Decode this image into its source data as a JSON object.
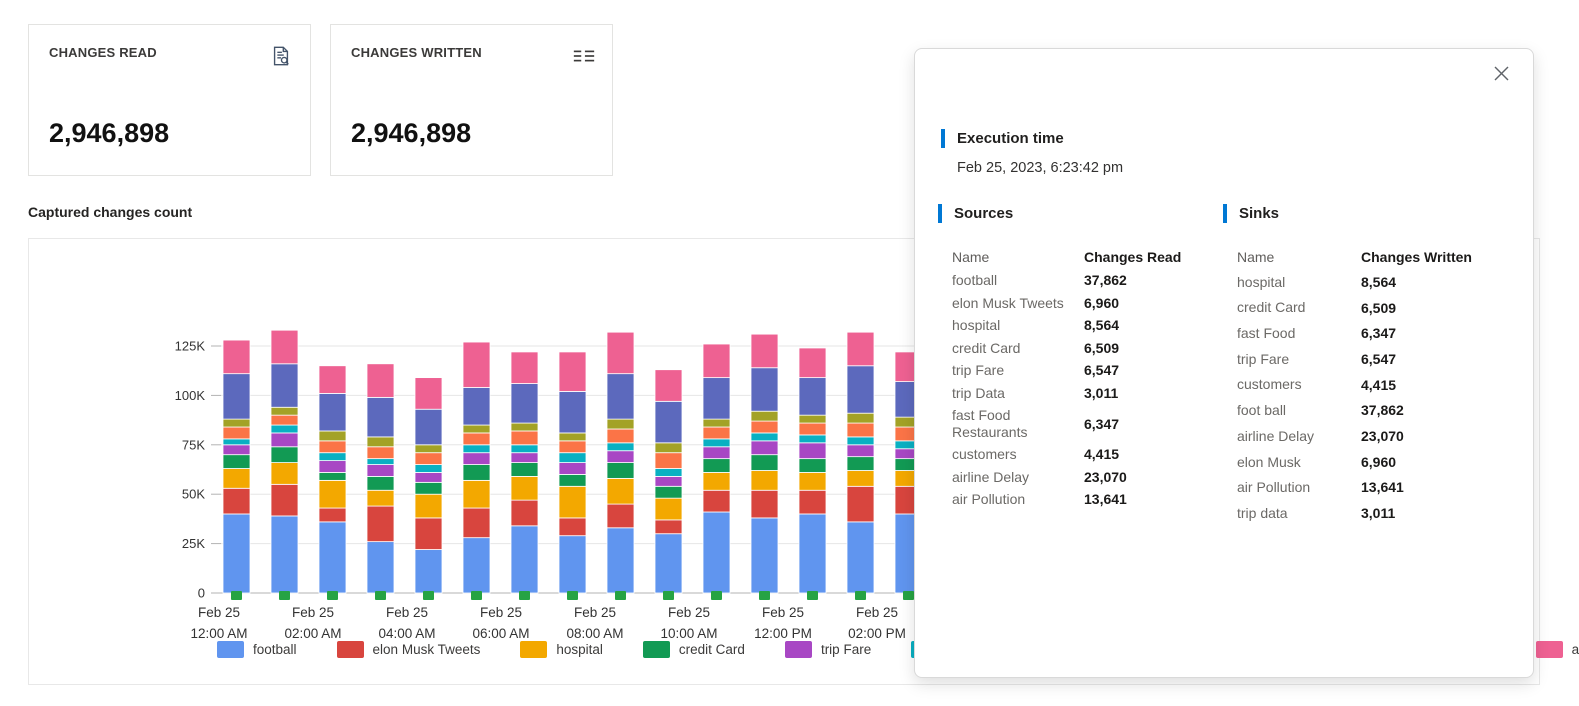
{
  "cards": {
    "read": {
      "title": "CHANGES READ",
      "value": "2,946,898",
      "icon": "document-search-icon"
    },
    "written": {
      "title": "CHANGES WRITTEN",
      "value": "2,946,898",
      "icon": "details-list-icon"
    }
  },
  "chart_data": {
    "type": "bar",
    "stacked": true,
    "title": "Captured changes count",
    "xlabel": "",
    "ylabel": "",
    "ylim": [
      0,
      137000
    ],
    "grid": true,
    "legend_position": "bottom",
    "y_ticks": [
      "0",
      "25K",
      "50K",
      "75K",
      "100K",
      "125K"
    ],
    "y_tick_values": [
      0,
      25000,
      50000,
      75000,
      100000,
      125000
    ],
    "x_labels": [
      {
        "line1": "Feb 25",
        "line2": "12:00 AM"
      },
      {
        "line1": "Feb 25",
        "line2": "02:00 AM"
      },
      {
        "line1": "Feb 25",
        "line2": "04:00 AM"
      },
      {
        "line1": "Feb 25",
        "line2": "06:00 AM"
      },
      {
        "line1": "Feb 25",
        "line2": "08:00 AM"
      },
      {
        "line1": "Feb 25",
        "line2": "10:00 AM"
      },
      {
        "line1": "Feb 25",
        "line2": "12:00 PM"
      },
      {
        "line1": "Feb 25",
        "line2": "02:00 PM"
      }
    ],
    "marker_color": "#26a343",
    "series": [
      {
        "name": "football",
        "color": "#6095ef",
        "values": [
          40000,
          39000,
          36000,
          26000,
          22000,
          28000,
          34000,
          29000,
          33000,
          30000,
          41000,
          38000,
          40000,
          36000,
          40000,
          40000
        ]
      },
      {
        "name": "elon Musk Tweets",
        "color": "#d8453e",
        "values": [
          13000,
          16000,
          7000,
          18000,
          16000,
          15000,
          13000,
          9000,
          12000,
          7000,
          11000,
          14000,
          12000,
          18000,
          14000,
          14000
        ]
      },
      {
        "name": "hospital",
        "color": "#f3a800",
        "values": [
          10000,
          11000,
          14000,
          8000,
          12000,
          14000,
          12000,
          16000,
          13000,
          11000,
          9000,
          10000,
          9000,
          8000,
          8000,
          9000
        ]
      },
      {
        "name": "credit Card",
        "color": "#129a54",
        "values": [
          7000,
          8000,
          4000,
          7000,
          6000,
          8000,
          7000,
          6000,
          8000,
          6000,
          7000,
          8000,
          7000,
          7000,
          6000,
          7000
        ]
      },
      {
        "name": "trip Fare",
        "color": "#a847c4",
        "values": [
          5000,
          7000,
          6000,
          6000,
          5000,
          6000,
          5000,
          6000,
          6000,
          5000,
          6000,
          7000,
          8000,
          6000,
          5000,
          5000
        ]
      },
      {
        "name": "trip Data",
        "color": "#09b0c2",
        "values": [
          3000,
          4000,
          4000,
          3000,
          4000,
          4000,
          4000,
          5000,
          4000,
          4000,
          4000,
          4000,
          4000,
          4000,
          4000,
          4000
        ]
      },
      {
        "name": "fast Food Restaurants",
        "color": "#fb7447",
        "values": [
          6000,
          5000,
          6000,
          6000,
          6000,
          6000,
          7000,
          6000,
          7000,
          8000,
          6000,
          6000,
          6000,
          7000,
          7000,
          6000
        ]
      },
      {
        "name": "customers",
        "color": "#a3a226",
        "values": [
          4000,
          4000,
          5000,
          5000,
          4000,
          4000,
          4000,
          4000,
          5000,
          5000,
          4000,
          5000,
          4000,
          5000,
          5000,
          4000
        ]
      },
      {
        "name": "airline Delay",
        "color": "#5c69bd",
        "values": [
          23000,
          22000,
          19000,
          20000,
          18000,
          19000,
          20000,
          21000,
          23000,
          21000,
          21000,
          22000,
          19000,
          24000,
          18000,
          19000
        ]
      },
      {
        "name": "air Pollution",
        "color": "#ee6192",
        "values": [
          17000,
          17000,
          14000,
          17000,
          16000,
          23000,
          16000,
          20000,
          21000,
          16000,
          17000,
          17000,
          15000,
          17000,
          15000,
          15000
        ]
      }
    ]
  },
  "popup": {
    "execution_time": {
      "label": "Execution time",
      "value": "Feb 25, 2023, 6:23:42 pm"
    },
    "sources": {
      "label": "Sources",
      "columns": [
        "Name",
        "Changes Read"
      ],
      "rows": [
        [
          "football",
          "37,862"
        ],
        [
          "elon Musk Tweets",
          "6,960"
        ],
        [
          "hospital",
          "8,564"
        ],
        [
          "credit Card",
          "6,509"
        ],
        [
          "trip Fare",
          "6,547"
        ],
        [
          "trip Data",
          "3,011"
        ],
        [
          "fast Food Restaurants",
          "6,347"
        ],
        [
          "customers",
          "4,415"
        ],
        [
          "airline Delay",
          "23,070"
        ],
        [
          "air Pollution",
          "13,641"
        ]
      ]
    },
    "sinks": {
      "label": "Sinks",
      "columns": [
        "Name",
        "Changes Written"
      ],
      "rows": [
        [
          "hospital",
          "8,564"
        ],
        [
          "credit Card",
          "6,509"
        ],
        [
          "fast Food",
          "6,347"
        ],
        [
          "trip Fare",
          "6,547"
        ],
        [
          "customers",
          "4,415"
        ],
        [
          "foot ball",
          "37,862"
        ],
        [
          "airline Delay",
          "23,070"
        ],
        [
          "elon Musk",
          "6,960"
        ],
        [
          "air Pollution",
          "13,641"
        ],
        [
          "trip data",
          "3,011"
        ]
      ]
    }
  },
  "colors": {
    "accent_blue": "#0078d4",
    "grid_line": "#e6e6e6",
    "axis_line": "#b3b3b3",
    "tick_text": "#333333",
    "marker_green": "#26a343"
  }
}
